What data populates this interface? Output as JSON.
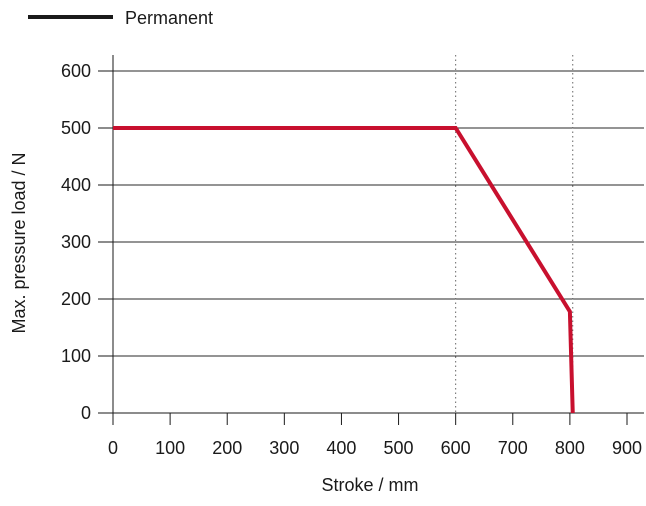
{
  "chart_data": {
    "type": "line",
    "title": "",
    "xlabel": "Stroke / mm",
    "ylabel": "Max. pressure load / N",
    "xlim": [
      0,
      900
    ],
    "ylim": [
      0,
      600
    ],
    "xticks": [
      0,
      100,
      200,
      300,
      400,
      500,
      600,
      700,
      800,
      900
    ],
    "yticks": [
      0,
      100,
      200,
      300,
      400,
      500,
      600
    ],
    "grid": "horizontal",
    "reference_lines_x": [
      600,
      805
    ],
    "legend": {
      "placement": "top-left",
      "entries": [
        {
          "label": "Permanent",
          "color": "#1a1a1a"
        }
      ]
    },
    "series": [
      {
        "name": "Permanent",
        "color": "#c8102e",
        "x": [
          0,
          600,
          800,
          805
        ],
        "y": [
          500,
          500,
          178,
          0
        ]
      }
    ]
  }
}
